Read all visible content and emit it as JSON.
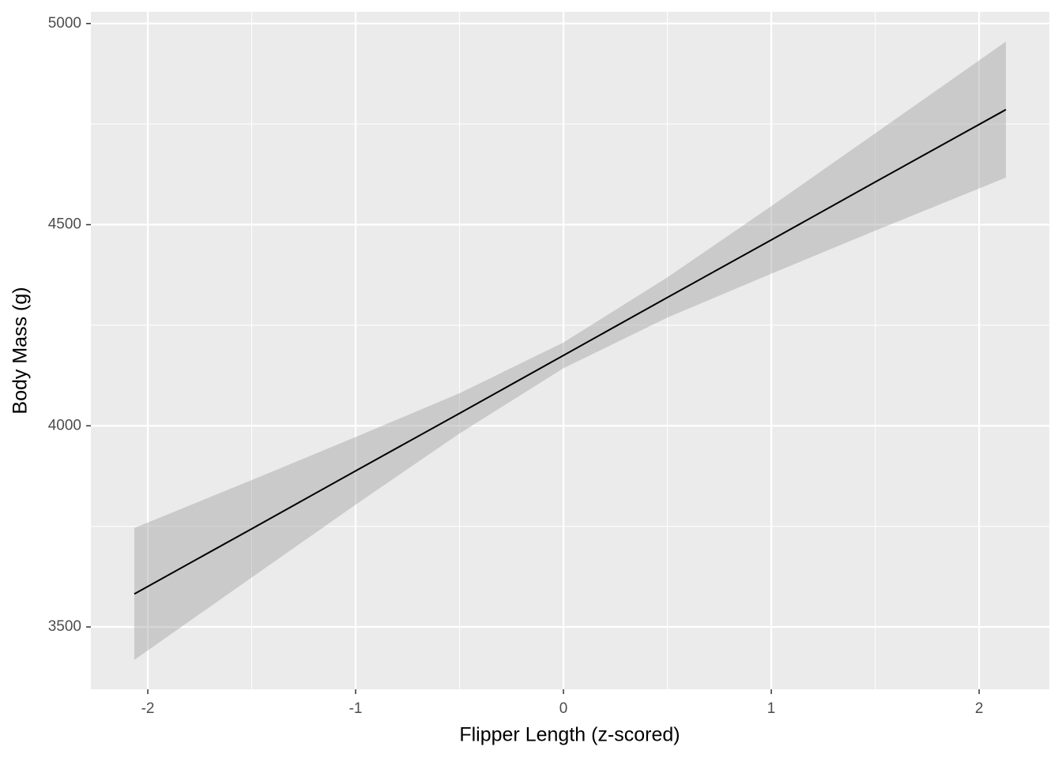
{
  "chart_data": {
    "type": "ribbon-line",
    "x_label": "Flipper Length (z-scored)",
    "y_label": "Body Mass (g)",
    "x": [
      -2.065,
      -1.5,
      -1,
      -0.5,
      0,
      0.5,
      1,
      1.5,
      2.129
    ],
    "values": [
      3582,
      3744,
      3888,
      4031,
      4175,
      4319,
      4462,
      4606,
      4786
    ],
    "ymin": [
      3418,
      3623,
      3804,
      3981,
      4143,
      4269,
      4378,
      4485,
      4617
    ],
    "ymax": [
      3746,
      3865,
      3972,
      4081,
      4207,
      4369,
      4546,
      4727,
      4955
    ],
    "color": "#000000",
    "ribbon_color": "#999999",
    "xlim": [
      -2.274,
      2.338
    ],
    "ylim": [
      3345,
      5029
    ],
    "xticks": [
      -2,
      -1,
      0,
      1,
      2
    ],
    "yticks": [
      3500,
      4000,
      4500,
      5000
    ],
    "x_minor_grid": [
      -1.5,
      -0.5,
      0.5,
      1.5
    ],
    "y_minor_grid": [
      3750,
      4250,
      4750
    ],
    "grid": true
  }
}
